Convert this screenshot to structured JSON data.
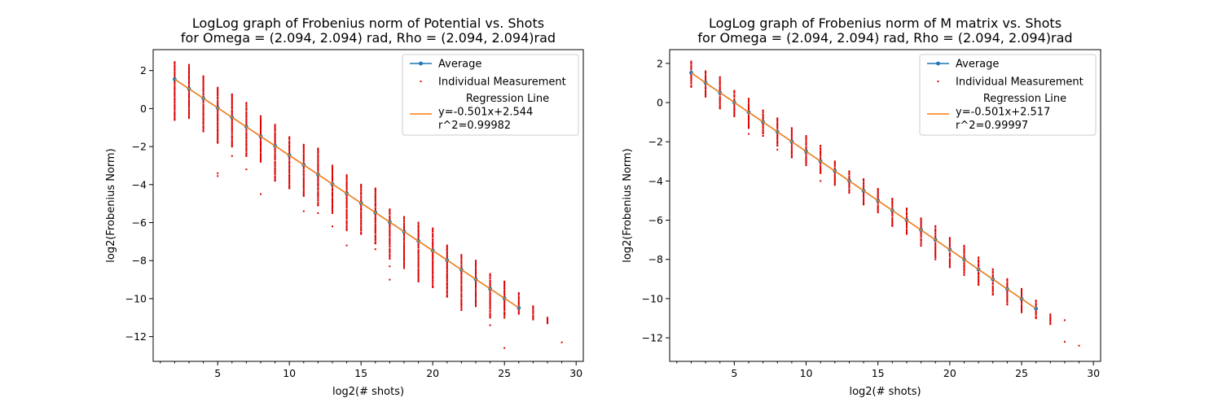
{
  "colors": {
    "average": "#1f77b4",
    "individual": "#dd0000",
    "regression": "#ff7f0e",
    "axes": "#000000",
    "legend_border": "#cccccc"
  },
  "chart_data": [
    {
      "type": "scatter",
      "title_lines": [
        "LogLog graph of Frobenius norm of Potential vs. Shots",
        "for Omega = (2.094, 2.094) rad, Rho = (2.094, 2.094)rad"
      ],
      "xlabel": "log2(# shots)",
      "ylabel": "log2(Frobenius Norm)",
      "xlim": [
        0.5,
        30.5
      ],
      "ylim": [
        -13.3,
        3.1
      ],
      "xticks": [
        5,
        10,
        15,
        20,
        25,
        30
      ],
      "yticks": [
        2,
        0,
        -2,
        -4,
        -6,
        -8,
        -10,
        -12
      ],
      "legend_position": "top-right",
      "legend": {
        "average": "Average",
        "individual": "Individual Measurement",
        "regression_lines": [
          "Regression Line",
          "y=-0.501x+2.544",
          "r^2=0.99982"
        ]
      },
      "regression": {
        "slope": -0.501,
        "intercept": 2.544,
        "x_range": [
          2,
          26
        ]
      },
      "series": [
        {
          "name": "Average",
          "x": [
            2,
            3,
            4,
            5,
            6,
            7,
            8,
            9,
            10,
            11,
            12,
            13,
            14,
            15,
            16,
            17,
            18,
            19,
            20,
            21,
            22,
            23,
            24,
            25,
            26
          ],
          "y": [
            1.54,
            1.04,
            0.54,
            0.04,
            -0.46,
            -0.96,
            -1.46,
            -1.96,
            -2.46,
            -2.96,
            -3.47,
            -3.97,
            -4.47,
            -4.97,
            -5.47,
            -5.97,
            -6.47,
            -6.97,
            -7.47,
            -7.97,
            -8.48,
            -8.98,
            -9.48,
            -9.98,
            -10.48
          ]
        },
        {
          "name": "Individual Measurement",
          "columns": [
            {
              "x": 2,
              "ymin": -0.6,
              "ymax": 2.45
            },
            {
              "x": 3,
              "ymin": -0.5,
              "ymax": 2.3
            },
            {
              "x": 4,
              "ymin": -1.2,
              "ymax": 1.7
            },
            {
              "x": 5,
              "ymin": -1.8,
              "ymax": 1.1
            },
            {
              "x": 6,
              "ymin": -2.0,
              "ymax": 0.75
            },
            {
              "x": 7,
              "ymin": -2.5,
              "ymax": 0.3
            },
            {
              "x": 8,
              "ymin": -2.8,
              "ymax": -0.4
            },
            {
              "x": 9,
              "ymin": -3.8,
              "ymax": -0.85
            },
            {
              "x": 10,
              "ymin": -4.2,
              "ymax": -1.5
            },
            {
              "x": 11,
              "ymin": -4.6,
              "ymax": -1.9
            },
            {
              "x": 12,
              "ymin": -5.1,
              "ymax": -2.1
            },
            {
              "x": 13,
              "ymin": -5.5,
              "ymax": -3.0
            },
            {
              "x": 14,
              "ymin": -6.4,
              "ymax": -3.5
            },
            {
              "x": 15,
              "ymin": -6.6,
              "ymax": -4.0
            },
            {
              "x": 16,
              "ymin": -7.1,
              "ymax": -4.2
            },
            {
              "x": 17,
              "ymin": -7.9,
              "ymax": -5.3
            },
            {
              "x": 18,
              "ymin": -8.4,
              "ymax": -5.7
            },
            {
              "x": 19,
              "ymin": -9.1,
              "ymax": -6.0
            },
            {
              "x": 20,
              "ymin": -9.4,
              "ymax": -6.3
            },
            {
              "x": 21,
              "ymin": -9.9,
              "ymax": -7.2
            },
            {
              "x": 22,
              "ymin": -10.6,
              "ymax": -7.7
            },
            {
              "x": 23,
              "ymin": -10.4,
              "ymax": -8.0
            },
            {
              "x": 24,
              "ymin": -11.0,
              "ymax": -8.7
            },
            {
              "x": 25,
              "ymin": -11.0,
              "ymax": -9.1
            },
            {
              "x": 26,
              "ymin": -10.8,
              "ymax": -9.7
            },
            {
              "x": 27,
              "ymin": -11.1,
              "ymax": -10.4
            },
            {
              "x": 28,
              "ymin": -11.3,
              "ymax": -11.0
            }
          ],
          "outliers": [
            {
              "x": 5,
              "y": -3.4
            },
            {
              "x": 5,
              "y": -3.55
            },
            {
              "x": 6,
              "y": -2.5
            },
            {
              "x": 7,
              "y": -3.2
            },
            {
              "x": 8,
              "y": -4.5
            },
            {
              "x": 11,
              "y": -5.4
            },
            {
              "x": 12,
              "y": -5.5
            },
            {
              "x": 13,
              "y": -6.2
            },
            {
              "x": 14,
              "y": -7.2
            },
            {
              "x": 16,
              "y": -7.4
            },
            {
              "x": 17,
              "y": -9.0
            },
            {
              "x": 17,
              "y": -8.3
            },
            {
              "x": 22,
              "y": -10.3
            },
            {
              "x": 24,
              "y": -11.4
            },
            {
              "x": 25,
              "y": -12.6
            },
            {
              "x": 29,
              "y": -12.3
            }
          ]
        }
      ]
    },
    {
      "type": "scatter",
      "title_lines": [
        "LogLog graph of Frobenius norm of M matrix vs. Shots",
        "for Omega = (2.094, 2.094) rad, Rho = (2.094, 2.094)rad"
      ],
      "xlabel": "log2(# shots)",
      "ylabel": "log2(Frobenius Norm)",
      "xlim": [
        0.5,
        30.5
      ],
      "ylim": [
        -13.2,
        2.7
      ],
      "xticks": [
        5,
        10,
        15,
        20,
        25,
        30
      ],
      "yticks": [
        2,
        0,
        -2,
        -4,
        -6,
        -8,
        -10,
        -12
      ],
      "legend_position": "top-right",
      "legend": {
        "average": "Average",
        "individual": "Individual Measurement",
        "regression_lines": [
          "Regression Line",
          "y=-0.501x+2.517",
          "r^2=0.99997"
        ]
      },
      "regression": {
        "slope": -0.501,
        "intercept": 2.517,
        "x_range": [
          2,
          26
        ]
      },
      "series": [
        {
          "name": "Average",
          "x": [
            2,
            3,
            4,
            5,
            6,
            7,
            8,
            9,
            10,
            11,
            12,
            13,
            14,
            15,
            16,
            17,
            18,
            19,
            20,
            21,
            22,
            23,
            24,
            25,
            26
          ],
          "y": [
            1.52,
            1.01,
            0.51,
            0.01,
            -0.49,
            -0.99,
            -1.49,
            -1.99,
            -2.49,
            -2.99,
            -3.49,
            -3.99,
            -4.5,
            -5.0,
            -5.5,
            -6.0,
            -6.5,
            -7.0,
            -7.5,
            -8.0,
            -8.51,
            -9.01,
            -9.51,
            -10.01,
            -10.51
          ]
        },
        {
          "name": "Individual Measurement",
          "columns": [
            {
              "x": 2,
              "ymin": 0.8,
              "ymax": 2.1
            },
            {
              "x": 3,
              "ymin": 0.3,
              "ymax": 1.6
            },
            {
              "x": 4,
              "ymin": -0.3,
              "ymax": 1.3
            },
            {
              "x": 5,
              "ymin": -0.7,
              "ymax": 0.6
            },
            {
              "x": 6,
              "ymin": -1.3,
              "ymax": 0.2
            },
            {
              "x": 7,
              "ymin": -1.7,
              "ymax": -0.4
            },
            {
              "x": 8,
              "ymin": -2.2,
              "ymax": -0.8
            },
            {
              "x": 9,
              "ymin": -2.8,
              "ymax": -1.3
            },
            {
              "x": 10,
              "ymin": -3.2,
              "ymax": -1.7
            },
            {
              "x": 11,
              "ymin": -3.6,
              "ymax": -2.2
            },
            {
              "x": 12,
              "ymin": -4.2,
              "ymax": -3.0
            },
            {
              "x": 13,
              "ymin": -4.6,
              "ymax": -3.5
            },
            {
              "x": 14,
              "ymin": -5.2,
              "ymax": -3.9
            },
            {
              "x": 15,
              "ymin": -5.6,
              "ymax": -4.4
            },
            {
              "x": 16,
              "ymin": -6.3,
              "ymax": -4.9
            },
            {
              "x": 17,
              "ymin": -6.7,
              "ymax": -5.4
            },
            {
              "x": 18,
              "ymin": -7.3,
              "ymax": -5.9
            },
            {
              "x": 19,
              "ymin": -7.9,
              "ymax": -6.3
            },
            {
              "x": 20,
              "ymin": -8.4,
              "ymax": -6.9
            },
            {
              "x": 21,
              "ymin": -8.8,
              "ymax": -7.3
            },
            {
              "x": 22,
              "ymin": -9.3,
              "ymax": -7.9
            },
            {
              "x": 23,
              "ymin": -9.8,
              "ymax": -8.5
            },
            {
              "x": 24,
              "ymin": -10.3,
              "ymax": -9.0
            },
            {
              "x": 25,
              "ymin": -10.7,
              "ymax": -9.5
            },
            {
              "x": 26,
              "ymin": -11.0,
              "ymax": -10.1
            },
            {
              "x": 27,
              "ymin": -11.3,
              "ymax": -10.8
            }
          ],
          "outliers": [
            {
              "x": 6,
              "y": -1.6
            },
            {
              "x": 8,
              "y": -2.4
            },
            {
              "x": 11,
              "y": -4.0
            },
            {
              "x": 19,
              "y": -8.0
            },
            {
              "x": 28,
              "y": -11.1
            },
            {
              "x": 28,
              "y": -12.2
            },
            {
              "x": 29,
              "y": -12.4
            }
          ]
        }
      ]
    }
  ]
}
